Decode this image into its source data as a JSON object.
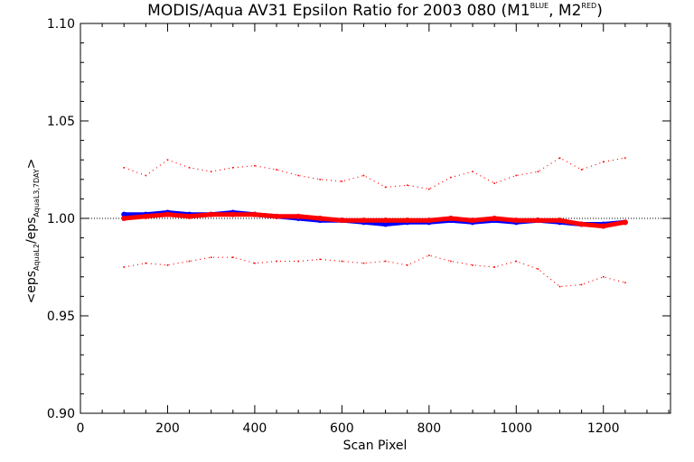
{
  "chart_data": {
    "type": "scatter",
    "title": {
      "main": "MODIS/Aqua AV31 Epsilon Ratio for 2003 080 (M1",
      "sup1": "BLUE",
      "mid": ", M2",
      "sup2": "RED",
      "end": ")"
    },
    "xlabel": "Scan Pixel",
    "ylabel": {
      "prefix": "<eps",
      "sub1": "AquaL2",
      "middle": "/eps",
      "sub2": "AquaL3,7DAY",
      "suffix": ">"
    },
    "xlim": [
      0,
      1354
    ],
    "ylim": [
      0.9,
      1.1
    ],
    "x_ticks": [
      0,
      200,
      400,
      600,
      800,
      1000,
      1200
    ],
    "x_tick_labels": [
      "0",
      "200",
      "400",
      "600",
      "800",
      "1000",
      "1200"
    ],
    "y_ticks": [
      0.9,
      0.95,
      1.0,
      1.05,
      1.1
    ],
    "y_tick_labels": [
      "0.90",
      "0.95",
      "1.00",
      "1.05",
      "1.10"
    ],
    "reference_line": 1.0,
    "colors": {
      "blue": "#0000ff",
      "red": "#ff0000",
      "axis": "#000000"
    },
    "series": [
      {
        "color": "blue",
        "role": "mean",
        "x": [
          100,
          150,
          200,
          250,
          300,
          350,
          400,
          450,
          500,
          550,
          600,
          650,
          700,
          750,
          800,
          850,
          900,
          950,
          1000,
          1050,
          1100,
          1150,
          1200,
          1250
        ],
        "y": [
          1.002,
          1.002,
          1.003,
          1.002,
          1.002,
          1.003,
          1.002,
          1.001,
          1.0,
          0.999,
          0.999,
          0.998,
          0.997,
          0.998,
          0.998,
          0.999,
          0.998,
          0.999,
          0.998,
          0.999,
          0.998,
          0.997,
          0.997,
          0.998
        ]
      },
      {
        "color": "red",
        "role": "mean",
        "x": [
          100,
          150,
          200,
          250,
          300,
          350,
          400,
          450,
          500,
          550,
          600,
          650,
          700,
          750,
          800,
          850,
          900,
          950,
          1000,
          1050,
          1100,
          1150,
          1200,
          1250
        ],
        "y": [
          1.0,
          1.001,
          1.002,
          1.001,
          1.002,
          1.002,
          1.002,
          1.001,
          1.001,
          1.0,
          0.999,
          0.999,
          0.999,
          0.999,
          0.999,
          1.0,
          0.999,
          1.0,
          0.999,
          0.999,
          0.999,
          0.997,
          0.996,
          0.998
        ]
      },
      {
        "color": "red",
        "role": "upper-bound",
        "x": [
          100,
          150,
          200,
          250,
          300,
          350,
          400,
          450,
          500,
          550,
          600,
          650,
          700,
          750,
          800,
          850,
          900,
          950,
          1000,
          1050,
          1100,
          1150,
          1200,
          1250
        ],
        "y": [
          1.026,
          1.022,
          1.03,
          1.026,
          1.024,
          1.026,
          1.027,
          1.025,
          1.022,
          1.02,
          1.019,
          1.022,
          1.016,
          1.017,
          1.015,
          1.021,
          1.024,
          1.018,
          1.022,
          1.024,
          1.031,
          1.025,
          1.029,
          1.031
        ]
      },
      {
        "color": "red",
        "role": "lower-bound",
        "x": [
          100,
          150,
          200,
          250,
          300,
          350,
          400,
          450,
          500,
          550,
          600,
          650,
          700,
          750,
          800,
          850,
          900,
          950,
          1000,
          1050,
          1100,
          1150,
          1200,
          1250
        ],
        "y": [
          0.975,
          0.977,
          0.976,
          0.978,
          0.98,
          0.98,
          0.977,
          0.978,
          0.978,
          0.979,
          0.978,
          0.977,
          0.978,
          0.976,
          0.981,
          0.978,
          0.976,
          0.975,
          0.978,
          0.974,
          0.965,
          0.966,
          0.97,
          0.967
        ]
      }
    ]
  }
}
